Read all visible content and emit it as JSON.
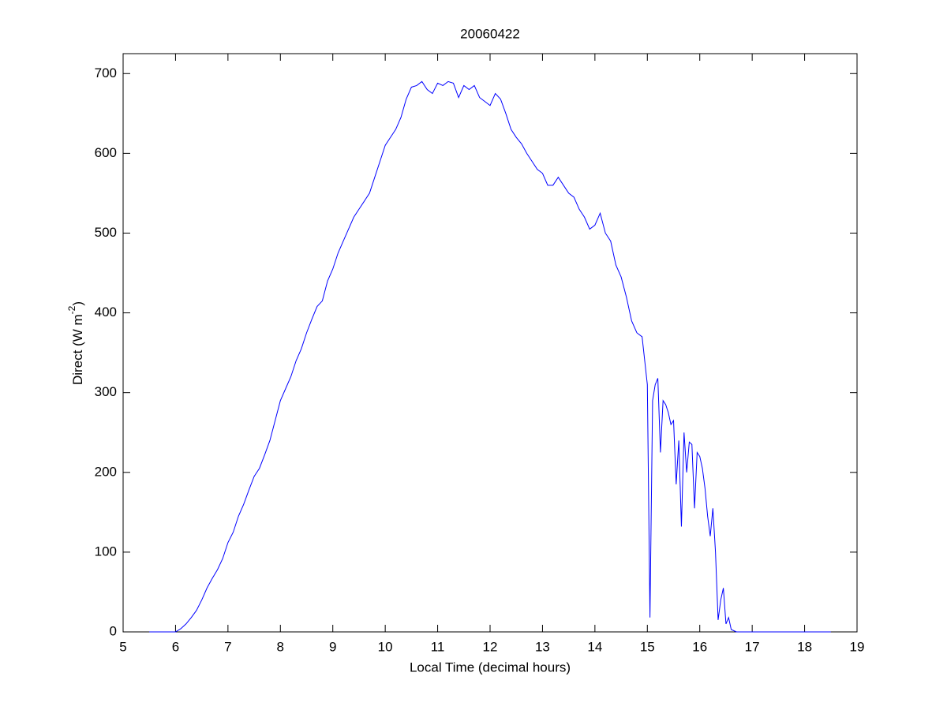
{
  "chart_data": {
    "type": "line",
    "title": "20060422",
    "xlabel": "Local Time (decimal hours)",
    "ylabel": [
      "Direct (W m",
      "-2",
      ")"
    ],
    "color": "#0000ff",
    "x": [
      5.5,
      6.0,
      6.1,
      6.2,
      6.3,
      6.4,
      6.5,
      6.6,
      6.7,
      6.8,
      6.9,
      7.0,
      7.1,
      7.2,
      7.3,
      7.4,
      7.5,
      7.6,
      7.7,
      7.8,
      7.9,
      8.0,
      8.1,
      8.2,
      8.3,
      8.4,
      8.5,
      8.6,
      8.7,
      8.8,
      8.9,
      9.0,
      9.1,
      9.2,
      9.3,
      9.4,
      9.5,
      9.6,
      9.7,
      9.8,
      9.9,
      10.0,
      10.1,
      10.2,
      10.3,
      10.4,
      10.5,
      10.6,
      10.7,
      10.8,
      10.9,
      11.0,
      11.1,
      11.2,
      11.3,
      11.4,
      11.5,
      11.6,
      11.7,
      11.8,
      11.9,
      12.0,
      12.1,
      12.2,
      12.3,
      12.4,
      12.5,
      12.6,
      12.7,
      12.8,
      12.9,
      13.0,
      13.1,
      13.2,
      13.3,
      13.4,
      13.5,
      13.6,
      13.7,
      13.8,
      13.9,
      14.0,
      14.1,
      14.2,
      14.3,
      14.4,
      14.5,
      14.6,
      14.7,
      14.8,
      14.9,
      14.95,
      15.0,
      15.05,
      15.1,
      15.15,
      15.2,
      15.25,
      15.3,
      15.35,
      15.4,
      15.45,
      15.5,
      15.55,
      15.6,
      15.65,
      15.7,
      15.75,
      15.8,
      15.85,
      15.9,
      15.95,
      16.0,
      16.05,
      16.1,
      16.15,
      16.2,
      16.25,
      16.3,
      16.35,
      16.4,
      16.45,
      16.5,
      16.55,
      16.6,
      16.7,
      18.5
    ],
    "values": [
      0,
      0,
      4,
      10,
      18,
      27,
      40,
      55,
      67,
      78,
      92,
      112,
      125,
      145,
      160,
      178,
      195,
      205,
      222,
      240,
      265,
      290,
      305,
      320,
      340,
      355,
      375,
      392,
      408,
      415,
      440,
      455,
      475,
      490,
      505,
      520,
      530,
      540,
      550,
      570,
      590,
      610,
      620,
      630,
      645,
      668,
      683,
      685,
      690,
      680,
      675,
      688,
      685,
      690,
      688,
      670,
      685,
      680,
      685,
      670,
      665,
      660,
      675,
      668,
      650,
      630,
      620,
      612,
      600,
      590,
      580,
      575,
      560,
      560,
      570,
      560,
      550,
      545,
      530,
      520,
      505,
      510,
      525,
      500,
      490,
      460,
      445,
      420,
      390,
      375,
      370,
      340,
      310,
      18,
      290,
      310,
      318,
      225,
      290,
      285,
      275,
      260,
      265,
      185,
      240,
      132,
      250,
      200,
      238,
      235,
      155,
      225,
      220,
      205,
      180,
      145,
      120,
      155,
      100,
      15,
      40,
      55,
      10,
      18,
      3,
      0,
      0
    ],
    "xlim": [
      5,
      19
    ],
    "xticks": [
      5,
      6,
      7,
      8,
      9,
      10,
      11,
      12,
      13,
      14,
      15,
      16,
      17,
      18,
      19
    ],
    "ylim": [
      0,
      725
    ],
    "yticks": [
      0,
      100,
      200,
      300,
      400,
      500,
      600,
      700
    ],
    "grid": false
  }
}
